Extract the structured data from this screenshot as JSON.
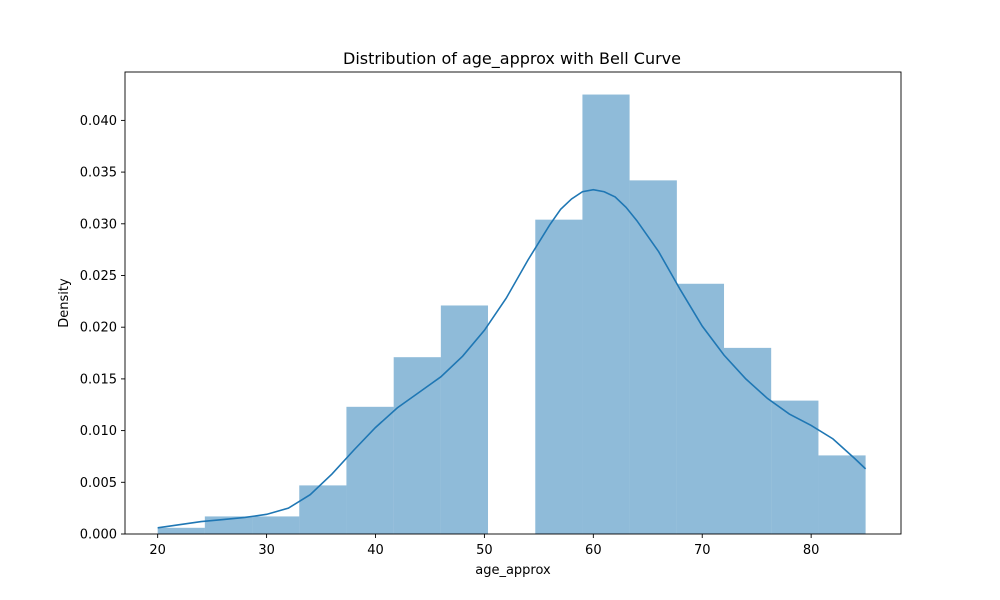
{
  "chart_data": {
    "type": "bar",
    "title": "Distribution of age_approx with Bell Curve",
    "xlabel": "age_approx",
    "ylabel": "Density",
    "xlim": [
      17,
      88.25
    ],
    "ylim": [
      0,
      0.04468
    ],
    "grid": false,
    "bar_color": "#1f77b4",
    "bar_opacity": 0.5,
    "line_color": "#1f77b4",
    "x_ticks": [
      20,
      30,
      40,
      50,
      60,
      70,
      80
    ],
    "x_tick_labels": [
      "20",
      "30",
      "40",
      "50",
      "60",
      "70",
      "80"
    ],
    "y_ticks": [
      0,
      0.005,
      0.01,
      0.015,
      0.02,
      0.025,
      0.03,
      0.035,
      0.04
    ],
    "y_tick_labels": [
      "0.000",
      "0.005",
      "0.010",
      "0.015",
      "0.020",
      "0.025",
      "0.030",
      "0.035",
      "0.040"
    ],
    "bins": [
      {
        "x0": 20.0,
        "x1": 24.33,
        "value": 0.0006
      },
      {
        "x0": 24.33,
        "x1": 28.67,
        "value": 0.0017
      },
      {
        "x0": 28.67,
        "x1": 33.0,
        "value": 0.0017
      },
      {
        "x0": 33.0,
        "x1": 37.33,
        "value": 0.0047
      },
      {
        "x0": 37.33,
        "x1": 41.67,
        "value": 0.0123
      },
      {
        "x0": 41.67,
        "x1": 46.0,
        "value": 0.0171
      },
      {
        "x0": 46.0,
        "x1": 50.33,
        "value": 0.0221
      },
      {
        "x0": 50.33,
        "x1": 54.67,
        "value": 0.0
      },
      {
        "x0": 54.67,
        "x1": 59.0,
        "value": 0.0304
      },
      {
        "x0": 59.0,
        "x1": 63.33,
        "value": 0.0425
      },
      {
        "x0": 63.33,
        "x1": 67.67,
        "value": 0.0342
      },
      {
        "x0": 67.67,
        "x1": 72.0,
        "value": 0.0242
      },
      {
        "x0": 72.0,
        "x1": 76.33,
        "value": 0.018
      },
      {
        "x0": 76.33,
        "x1": 80.67,
        "value": 0.0129
      },
      {
        "x0": 80.67,
        "x1": 85.0,
        "value": 0.0076
      }
    ],
    "kde": {
      "x": [
        20,
        22,
        24,
        26,
        28,
        30,
        32,
        34,
        36,
        38,
        40,
        42,
        44,
        46,
        48,
        50,
        52,
        54,
        56,
        57,
        58,
        59,
        60,
        61,
        62,
        63,
        64,
        66,
        68,
        70,
        72,
        74,
        76,
        78,
        80,
        82,
        84,
        85
      ],
      "y": [
        0.0006,
        0.0009,
        0.0012,
        0.0014,
        0.0016,
        0.0019,
        0.0025,
        0.0038,
        0.0058,
        0.0081,
        0.0103,
        0.0122,
        0.0137,
        0.0152,
        0.0172,
        0.0197,
        0.0228,
        0.0265,
        0.0299,
        0.0314,
        0.0324,
        0.0331,
        0.0333,
        0.0331,
        0.0326,
        0.0316,
        0.0303,
        0.0273,
        0.0236,
        0.0201,
        0.0173,
        0.015,
        0.0131,
        0.0116,
        0.0105,
        0.0092,
        0.0073,
        0.0063
      ]
    }
  }
}
